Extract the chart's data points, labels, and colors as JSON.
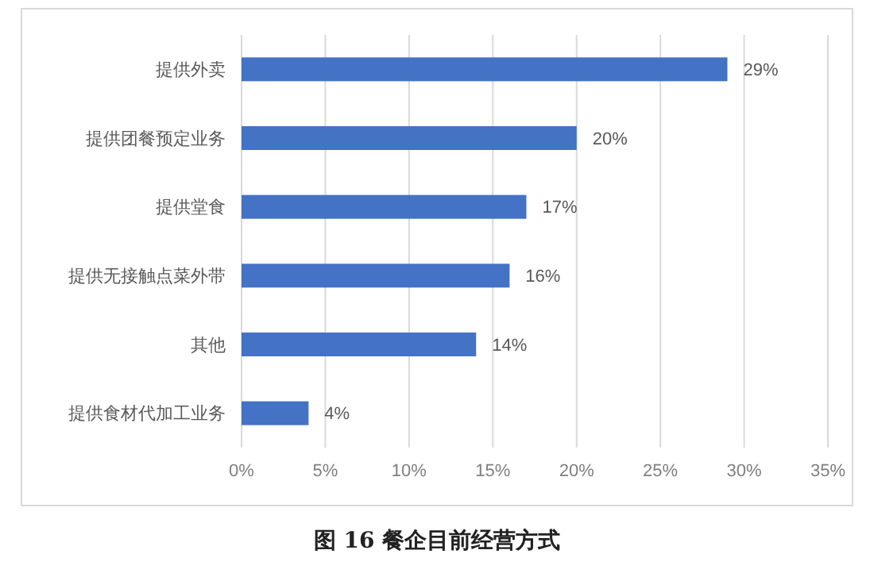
{
  "chart_data": {
    "type": "bar",
    "orientation": "horizontal",
    "title": "图 16 餐企目前经营方式",
    "categories": [
      "提供外卖",
      "提供团餐预定业务",
      "提供堂食",
      "提供无接触点菜外带",
      "其他",
      "提供食材代加工业务"
    ],
    "values": [
      29,
      20,
      17,
      16,
      14,
      4
    ],
    "value_labels": [
      "29%",
      "20%",
      "17%",
      "16%",
      "14%",
      "4%"
    ],
    "color": "#4472c4",
    "grid": "x",
    "xlim": [
      0,
      35
    ],
    "xticks": [
      {
        "value": 0,
        "label": "0%"
      },
      {
        "value": 5,
        "label": "5%"
      },
      {
        "value": 10,
        "label": "10%"
      },
      {
        "value": 15,
        "label": "15%"
      },
      {
        "value": 20,
        "label": "20%"
      },
      {
        "value": 25,
        "label": "25%"
      },
      {
        "value": 30,
        "label": "30%"
      },
      {
        "value": 35,
        "label": "35%"
      }
    ]
  }
}
